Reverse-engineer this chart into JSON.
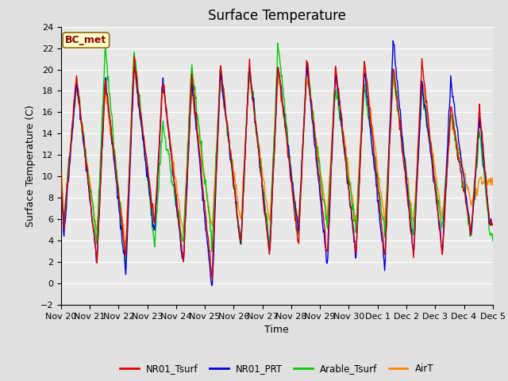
{
  "title": "Surface Temperature",
  "ylabel": "Surface Temperature (C)",
  "xlabel": "Time",
  "annotation": "BC_met",
  "ylim": [
    -2,
    24
  ],
  "yticks": [
    -2,
    0,
    2,
    4,
    6,
    8,
    10,
    12,
    14,
    16,
    18,
    20,
    22,
    24
  ],
  "xtick_labels": [
    "Nov 20",
    "Nov 21",
    "Nov 22",
    "Nov 23",
    "Nov 24",
    "Nov 25",
    "Nov 26",
    "Nov 27",
    "Nov 28",
    "Nov 29",
    "Nov 30",
    "Dec 1",
    "Dec 2",
    "Dec 3",
    "Dec 4",
    "Dec 5"
  ],
  "line_colors": {
    "NR01_Tsurf": "#dd0000",
    "NR01_PRT": "#0000dd",
    "Arable_Tsurf": "#00cc00",
    "AirT": "#ff8800"
  },
  "line_width": 1.0,
  "background_color": "#e8e8e8",
  "grid_color": "#ffffff",
  "fig_background": "#e0e0e0",
  "title_fontsize": 12,
  "label_fontsize": 9,
  "tick_fontsize": 8
}
